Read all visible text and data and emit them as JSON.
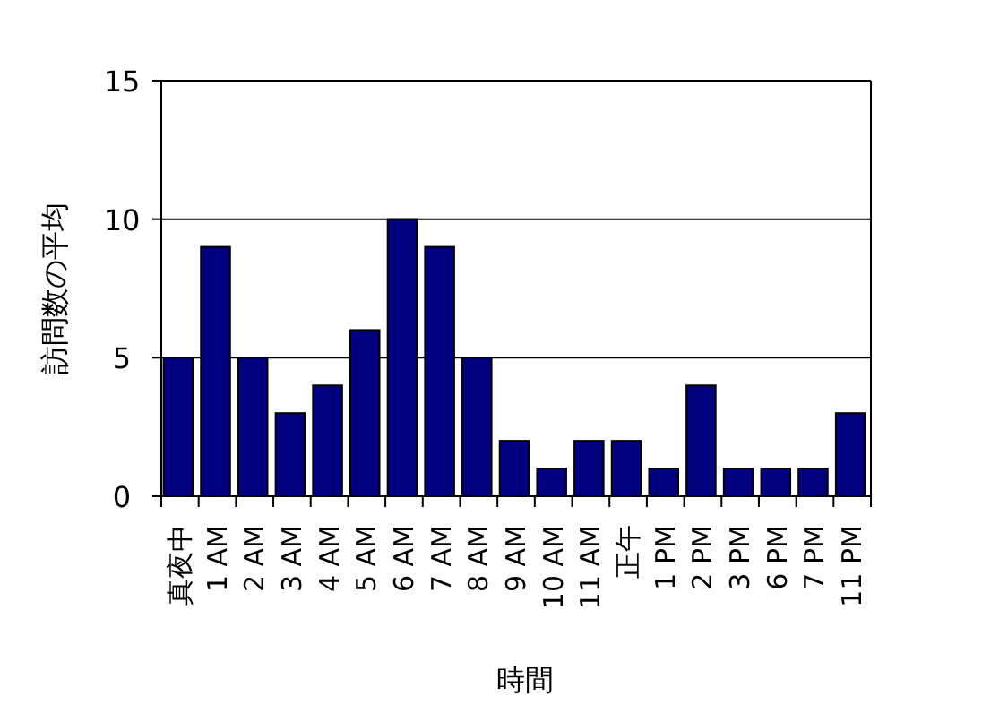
{
  "chart_data": {
    "type": "bar",
    "xlabel": "時間",
    "ylabel": "訪問数の平均",
    "categories": [
      "真夜中",
      "1 AM",
      "2 AM",
      "3 AM",
      "4 AM",
      "5 AM",
      "6 AM",
      "7 AM",
      "8 AM",
      "9 AM",
      "10 AM",
      "11 AM",
      "正午",
      "1 PM",
      "2 PM",
      "3 PM",
      "6 PM",
      "7 PM",
      "11 PM"
    ],
    "values": [
      5,
      9,
      5,
      3,
      4,
      6,
      10,
      9,
      5,
      2,
      1,
      2,
      2,
      1,
      4,
      1,
      1,
      1,
      3
    ],
    "color": "#000080",
    "ylim": [
      0,
      15
    ],
    "yticks": [
      0,
      5,
      10,
      15
    ],
    "grid": "y"
  }
}
